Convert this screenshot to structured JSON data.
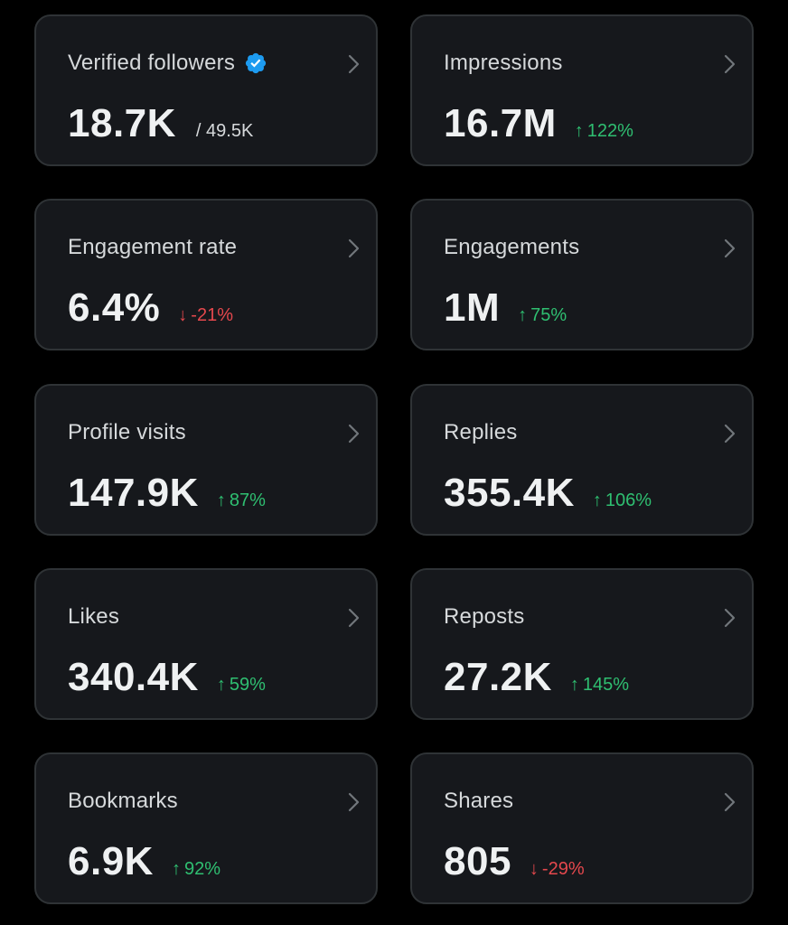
{
  "colors": {
    "background": "#000000",
    "card": "#16181c",
    "border": "#2f3336",
    "up": "#2fbf71",
    "down": "#e5484d",
    "verified": "#1d9bf0"
  },
  "cards": [
    {
      "title": "Verified followers",
      "verified": true,
      "value": "18.7K",
      "sub": "/ 49.5K"
    },
    {
      "title": "Impressions",
      "value": "16.7M",
      "delta_arrow": "↑",
      "delta": "122%",
      "trend": "up"
    },
    {
      "title": "Engagement rate",
      "value": "6.4%",
      "delta_arrow": "↓",
      "delta": "-21%",
      "trend": "down"
    },
    {
      "title": "Engagements",
      "value": "1M",
      "delta_arrow": "↑",
      "delta": "75%",
      "trend": "up"
    },
    {
      "title": "Profile visits",
      "value": "147.9K",
      "delta_arrow": "↑",
      "delta": "87%",
      "trend": "up"
    },
    {
      "title": "Replies",
      "value": "355.4K",
      "delta_arrow": "↑",
      "delta": "106%",
      "trend": "up"
    },
    {
      "title": "Likes",
      "value": "340.4K",
      "delta_arrow": "↑",
      "delta": "59%",
      "trend": "up"
    },
    {
      "title": "Reposts",
      "value": "27.2K",
      "delta_arrow": "↑",
      "delta": "145%",
      "trend": "up"
    },
    {
      "title": "Bookmarks",
      "value": "6.9K",
      "delta_arrow": "↑",
      "delta": "92%",
      "trend": "up"
    },
    {
      "title": "Shares",
      "value": "805",
      "delta_arrow": "↓",
      "delta": "-29%",
      "trend": "down"
    }
  ]
}
